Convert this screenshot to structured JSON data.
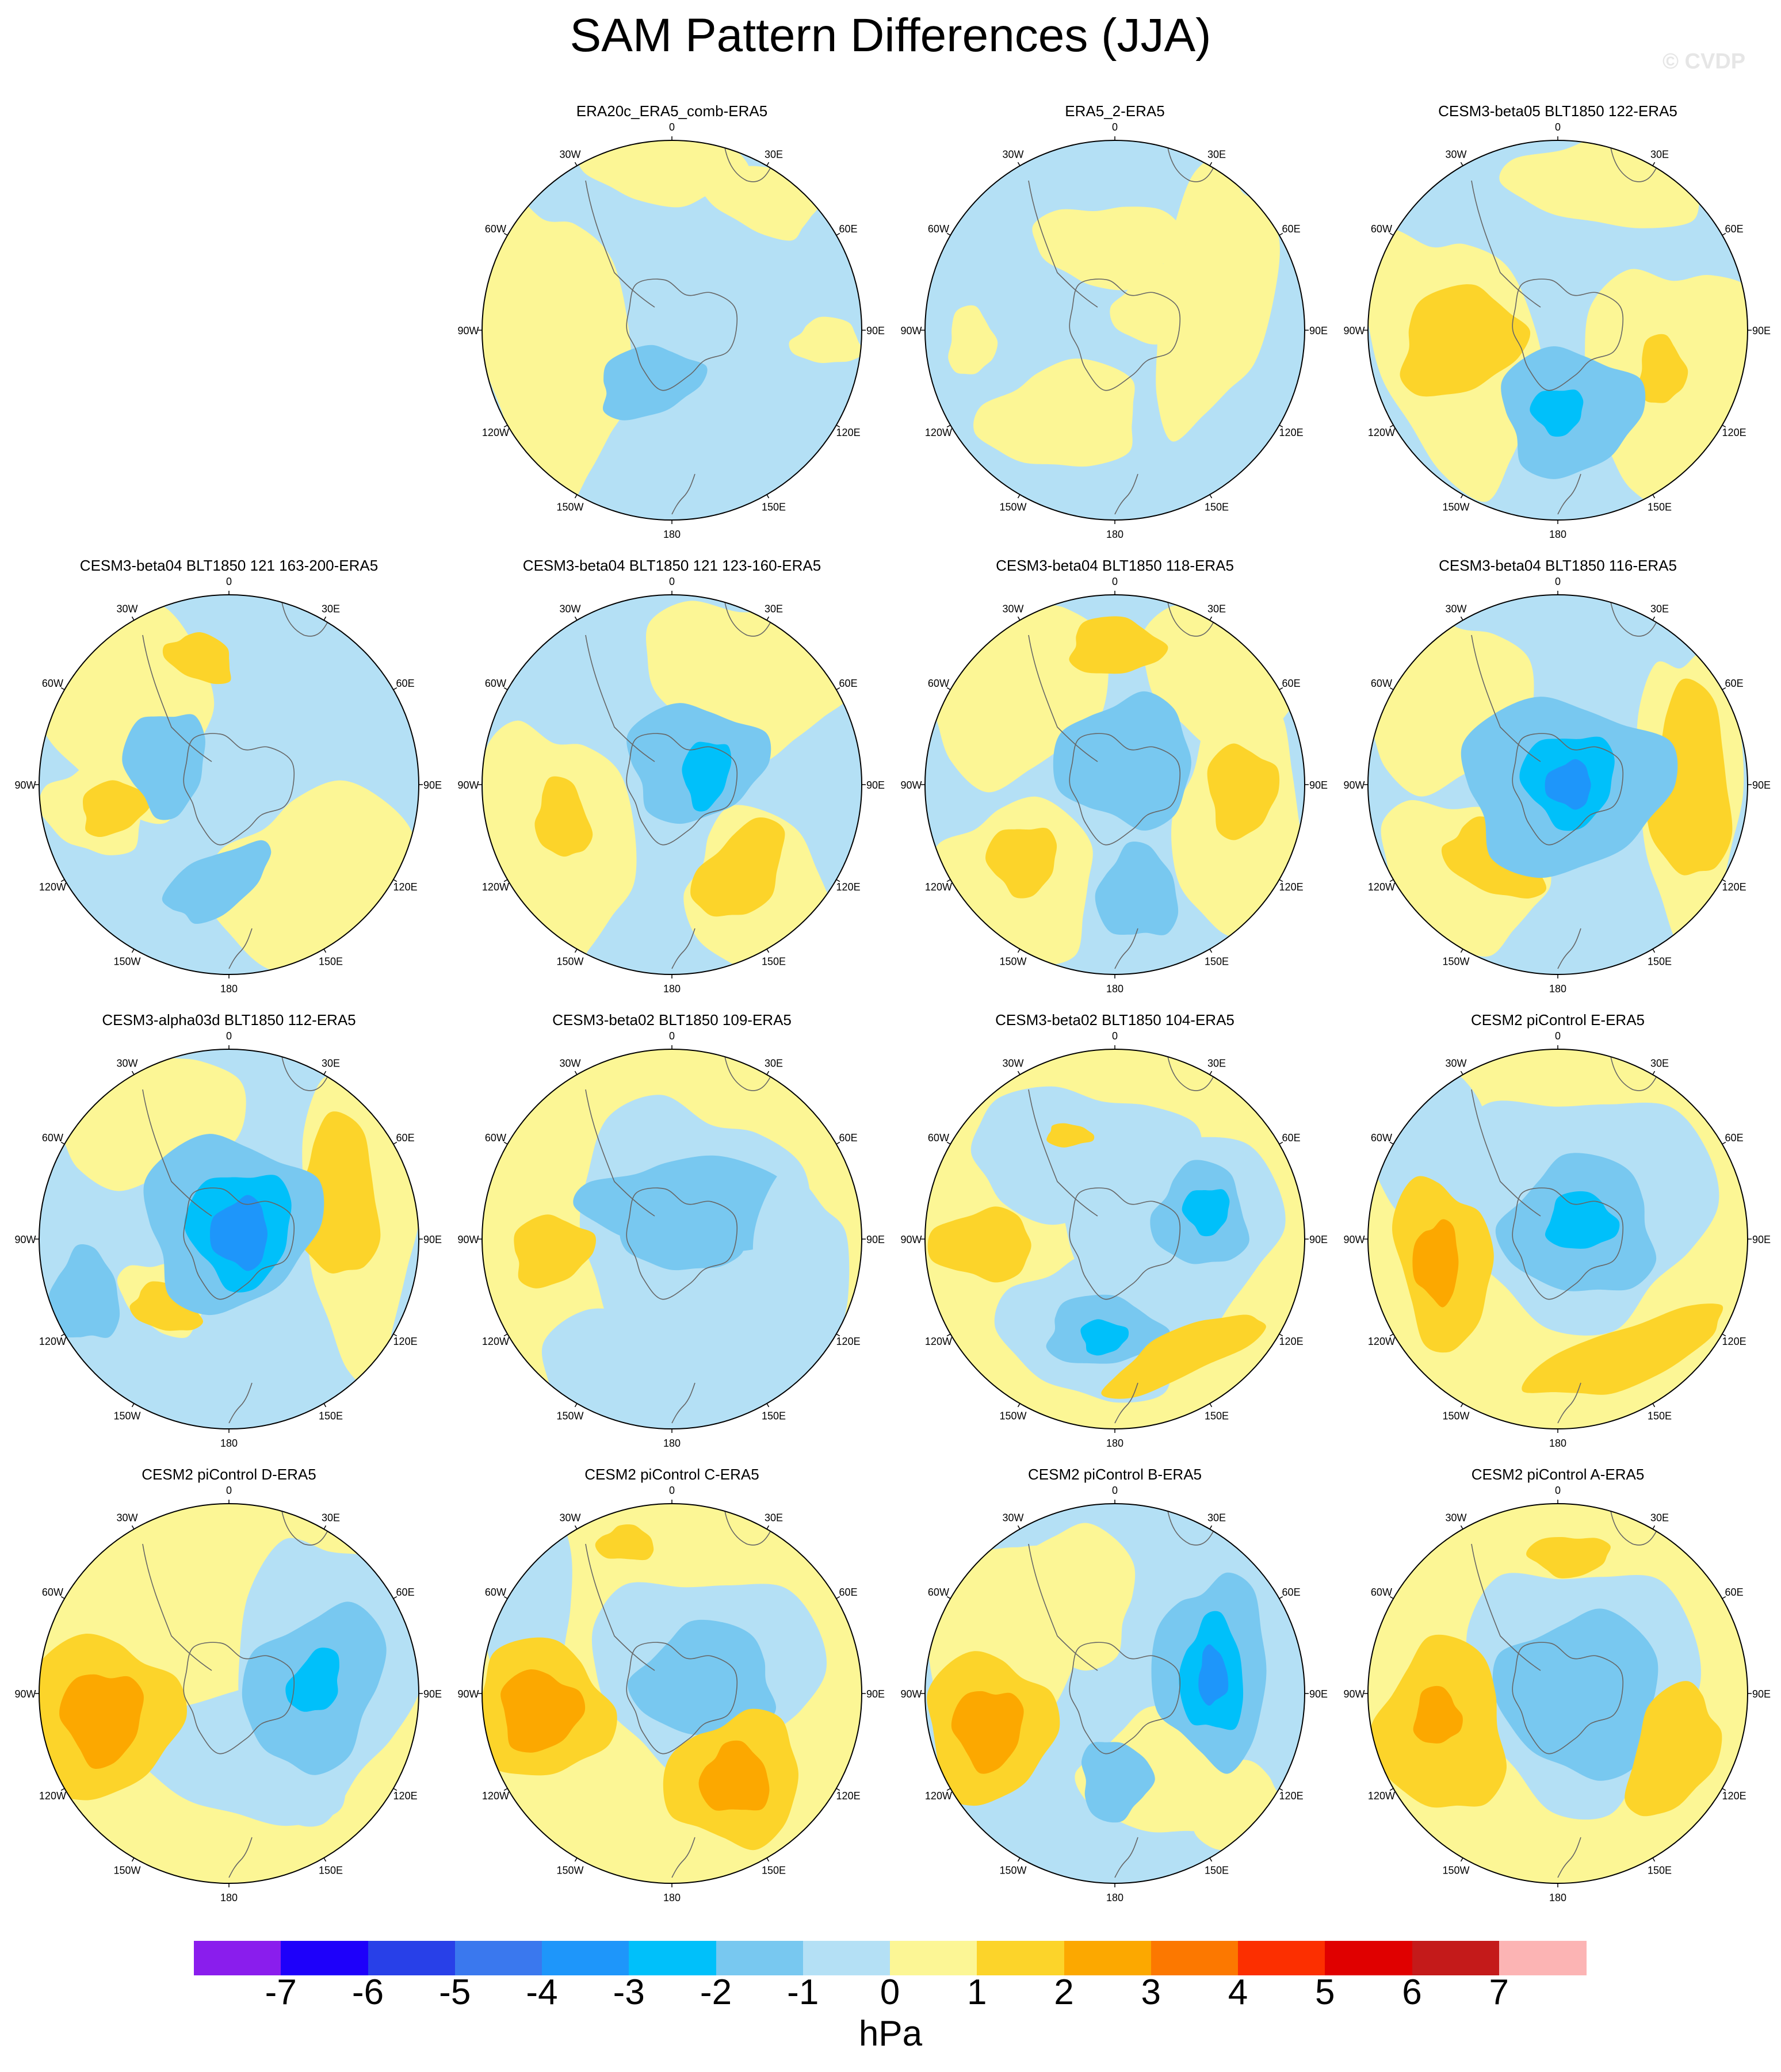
{
  "title": "SAM Pattern Differences (JJA)",
  "watermark": "© CVDP",
  "lon_labels": [
    "0",
    "30E",
    "60E",
    "90E",
    "120E",
    "150E",
    "180",
    "150W",
    "120W",
    "90W",
    "60W",
    "30W"
  ],
  "panels": [
    {
      "title": "ERA20c_ERA5_comb-ERA5"
    },
    {
      "title": "ERA5_2-ERA5"
    },
    {
      "title": "CESM3-beta05 BLT1850 122-ERA5"
    },
    {
      "title": "CESM3-beta04 BLT1850 121 163-200-ERA5"
    },
    {
      "title": "CESM3-beta04 BLT1850 121 123-160-ERA5"
    },
    {
      "title": "CESM3-beta04 BLT1850 118-ERA5"
    },
    {
      "title": "CESM3-beta04 BLT1850 116-ERA5"
    },
    {
      "title": "CESM3-alpha03d BLT1850 112-ERA5"
    },
    {
      "title": "CESM3-beta02 BLT1850 109-ERA5"
    },
    {
      "title": "CESM3-beta02 BLT1850 104-ERA5"
    },
    {
      "title": "CESM2 piControl E-ERA5"
    },
    {
      "title": "CESM2 piControl D-ERA5"
    },
    {
      "title": "CESM2 piControl C-ERA5"
    },
    {
      "title": "CESM2 piControl B-ERA5"
    },
    {
      "title": "CESM2 piControl A-ERA5"
    }
  ],
  "colorbar": {
    "colors": [
      "#8a1ded",
      "#1e00fa",
      "#2840e8",
      "#3a78ee",
      "#1e96fa",
      "#00c0fa",
      "#78c8f0",
      "#b4e0f5",
      "#fcf695",
      "#fcd42a",
      "#fca800",
      "#fc7800",
      "#fc2f00",
      "#e00000",
      "#c41a1a",
      "#fcb4b4"
    ],
    "labels": [
      "-7",
      "-6",
      "-5",
      "-4",
      "-3",
      "-2",
      "-1",
      "0",
      "1",
      "2",
      "3",
      "4",
      "5",
      "6",
      "7"
    ],
    "units": "hPa"
  }
}
